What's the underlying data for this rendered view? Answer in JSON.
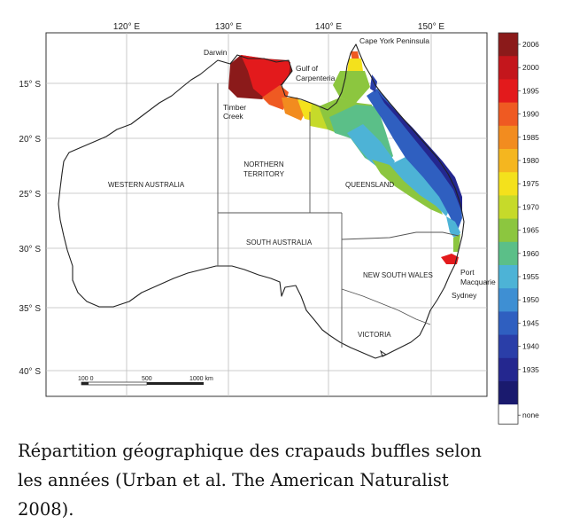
{
  "map": {
    "longitude_labels": [
      "120° E",
      "130° E",
      "140° E",
      "150° E"
    ],
    "latitude_labels": [
      "15° S",
      "20° S",
      "25° S",
      "30° S",
      "35° S",
      "40° S"
    ],
    "place_labels": {
      "darwin": "Darwin",
      "gulf_line1": "Gulf of",
      "gulf_line2": "Carpenteria",
      "cape_york": "Cape York Peninsula",
      "timber_line1": "Timber",
      "timber_line2": "Creek",
      "western_australia": "WESTERN AUSTRALIA",
      "nt_line1": "NORTHERN",
      "nt_line2": "TERRITORY",
      "queensland": "QUEENSLAND",
      "south_australia": "SOUTH AUSTRALIA",
      "nsw": "NEW SOUTH WALES",
      "victoria": "VICTORIA",
      "port_line1": "Port",
      "port_line2": "Macquarie",
      "sydney": "Sydney"
    },
    "scale_bar": {
      "labels": [
        "100 0",
        "500",
        "1000 km"
      ]
    }
  },
  "legend": {
    "years": [
      "2006",
      "2000",
      "1995",
      "1990",
      "1985",
      "1980",
      "1975",
      "1970",
      "1965",
      "1960",
      "1955",
      "1950",
      "1945",
      "1940",
      "1935"
    ],
    "none_label": "none",
    "colors": [
      "#8b1a1a",
      "#c4161c",
      "#e31a1c",
      "#ef5a22",
      "#f28c1f",
      "#f5b61f",
      "#f4e11c",
      "#c6da2a",
      "#8cc63f",
      "#5bbf88",
      "#4db3d6",
      "#3e8fd3",
      "#2f5fc0",
      "#2a3ea8",
      "#24278f",
      "#1a1a6e"
    ]
  },
  "caption": {
    "line1": "Répartition géographique des crapauds buffles selon",
    "line2": "les années (Urban et al. The American Naturalist",
    "line3": "2008)."
  }
}
